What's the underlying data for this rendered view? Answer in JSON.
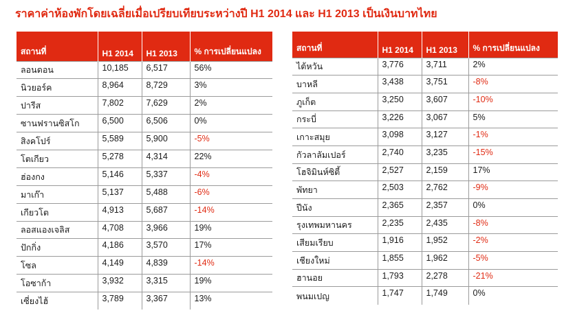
{
  "title": "ราคาค่าห้องพักโดยเฉลี่ยเมื่อเปรียบเทียบระหว่างปี  H1 2014 และ H1 2013 เป็นเงินบาทไทย",
  "columns": {
    "location": "สถานที่",
    "h1_2014": "H1 2014",
    "h1_2013": "H1 2013",
    "change": "% การเปลี่ยนแปลง"
  },
  "colors": {
    "header_bg": "#e02a12",
    "negative": "#e02a12",
    "title": "#e02a12"
  },
  "left_table": [
    {
      "name": "ลอนดอน",
      "h1_2014": "10,185",
      "h1_2013": "6,517",
      "change": "56%",
      "negative": false
    },
    {
      "name": "นิวยอร์ค",
      "h1_2014": "8,964",
      "h1_2013": "8,729",
      "change": "3%",
      "negative": false
    },
    {
      "name": "ปารีส",
      "h1_2014": "7,802",
      "h1_2013": "7,629",
      "change": "2%",
      "negative": false
    },
    {
      "name": "ซานฟรานซิสโก",
      "h1_2014": "6,500",
      "h1_2013": "6,506",
      "change": "0%",
      "negative": false
    },
    {
      "name": "สิงคโปร์",
      "h1_2014": "5,589",
      "h1_2013": "5,900",
      "change": "-5%",
      "negative": true
    },
    {
      "name": "โตเกียว",
      "h1_2014": "5,278",
      "h1_2013": "4,314",
      "change": "22%",
      "negative": false
    },
    {
      "name": "ฮ่องกง",
      "h1_2014": "5,146",
      "h1_2013": "5,337",
      "change": "-4%",
      "negative": true
    },
    {
      "name": "มาเก๊า",
      "h1_2014": "5,137",
      "h1_2013": "5,488",
      "change": "-6%",
      "negative": true
    },
    {
      "name": "เกียวโต",
      "h1_2014": "4,913",
      "h1_2013": "5,687",
      "change": "-14%",
      "negative": true
    },
    {
      "name": "ลอสแองเจลิส",
      "h1_2014": "4,708",
      "h1_2013": "3,966",
      "change": "19%",
      "negative": false
    },
    {
      "name": "ปักกิ่ง",
      "h1_2014": "4,186",
      "h1_2013": "3,570",
      "change": "17%",
      "negative": false
    },
    {
      "name": "โซล",
      "h1_2014": "4,149",
      "h1_2013": "4,839",
      "change": "-14%",
      "negative": true
    },
    {
      "name": "โอซาก้า",
      "h1_2014": "3,932",
      "h1_2013": "3,315",
      "change": "19%",
      "negative": false
    },
    {
      "name": "เซี่ยงไฮ้",
      "h1_2014": "3,789",
      "h1_2013": "3,367",
      "change": "13%",
      "negative": false
    }
  ],
  "right_table": [
    {
      "name": "ไต้หวัน",
      "h1_2014": "3,776",
      "h1_2013": "3,711",
      "change": "2%",
      "negative": false
    },
    {
      "name": "บาหลี",
      "h1_2014": "3,438",
      "h1_2013": "3,751",
      "change": "-8%",
      "negative": true
    },
    {
      "name": "ภูเก็ต",
      "h1_2014": "3,250",
      "h1_2013": "3,607",
      "change": "-10%",
      "negative": true
    },
    {
      "name": "กระบี่",
      "h1_2014": "3,226",
      "h1_2013": "3,067",
      "change": "5%",
      "negative": false
    },
    {
      "name": "เกาะสมุย",
      "h1_2014": "3,098",
      "h1_2013": "3,127",
      "change": "-1%",
      "negative": true
    },
    {
      "name": "กัวลาลัมเปอร์",
      "h1_2014": "2,740",
      "h1_2013": "3,235",
      "change": "-15%",
      "negative": true
    },
    {
      "name": "โฮจิมินห์ซิตี้",
      "h1_2014": "2,527",
      "h1_2013": "2,159",
      "change": "17%",
      "negative": false
    },
    {
      "name": "พัทยา",
      "h1_2014": "2,503",
      "h1_2013": "2,762",
      "change": "-9%",
      "negative": true
    },
    {
      "name": "ปีนัง",
      "h1_2014": "2,365",
      "h1_2013": "2,357",
      "change": "0%",
      "negative": false
    },
    {
      "name": "รุงเทพมหานคร",
      "h1_2014": "2,235",
      "h1_2013": "2,435",
      "change": "-8%",
      "negative": true
    },
    {
      "name": "เสียมเรียบ",
      "h1_2014": "1,916",
      "h1_2013": "1,952",
      "change": "-2%",
      "negative": true
    },
    {
      "name": "เชียงใหม่",
      "h1_2014": "1,855",
      "h1_2013": "1,962",
      "change": "-5%",
      "negative": true
    },
    {
      "name": "ฮานอย",
      "h1_2014": "1,793",
      "h1_2013": "2,278",
      "change": "-21%",
      "negative": true
    },
    {
      "name": "พนมเปญ",
      "h1_2014": "1,747",
      "h1_2013": "1,749",
      "change": "0%",
      "negative": false
    }
  ]
}
